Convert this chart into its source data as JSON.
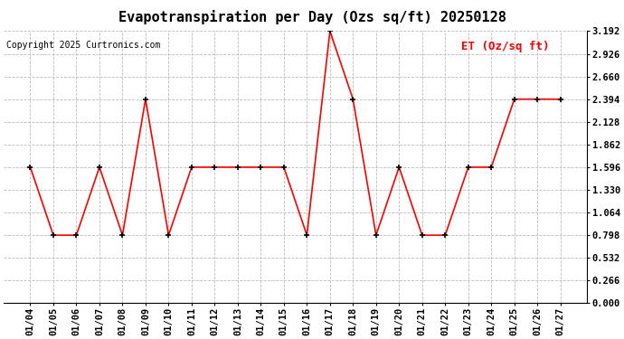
{
  "title": "Evapotranspiration per Day (Ozs sq/ft) 20250128",
  "copyright": "Copyright 2025 Curtronics.com",
  "legend_label": "ET (Oz/sq ft)",
  "dates": [
    "01/04",
    "01/05",
    "01/06",
    "01/07",
    "01/08",
    "01/09",
    "01/10",
    "01/11",
    "01/12",
    "01/13",
    "01/14",
    "01/15",
    "01/16",
    "01/17",
    "01/18",
    "01/19",
    "01/20",
    "01/21",
    "01/22",
    "01/23",
    "01/24",
    "01/25",
    "01/26",
    "01/27"
  ],
  "values": [
    1.596,
    0.798,
    0.798,
    1.596,
    0.798,
    2.394,
    0.798,
    1.596,
    1.596,
    1.596,
    1.596,
    1.596,
    0.798,
    3.192,
    2.394,
    0.798,
    1.596,
    0.798,
    0.798,
    1.596,
    1.596,
    2.394,
    2.394,
    2.394
  ],
  "line_color": "red",
  "marker_color": "black",
  "marker_size": 3,
  "ylim": [
    0.0,
    3.192
  ],
  "yticks": [
    0.0,
    0.266,
    0.532,
    0.798,
    1.064,
    1.33,
    1.596,
    1.862,
    2.128,
    2.394,
    2.66,
    2.926,
    3.192
  ],
  "background_color": "white",
  "grid_color": "#bbbbbb",
  "title_fontsize": 11,
  "copyright_fontsize": 7,
  "legend_fontsize": 9,
  "tick_fontsize": 7.5,
  "figwidth": 6.9,
  "figheight": 3.75,
  "dpi": 100
}
